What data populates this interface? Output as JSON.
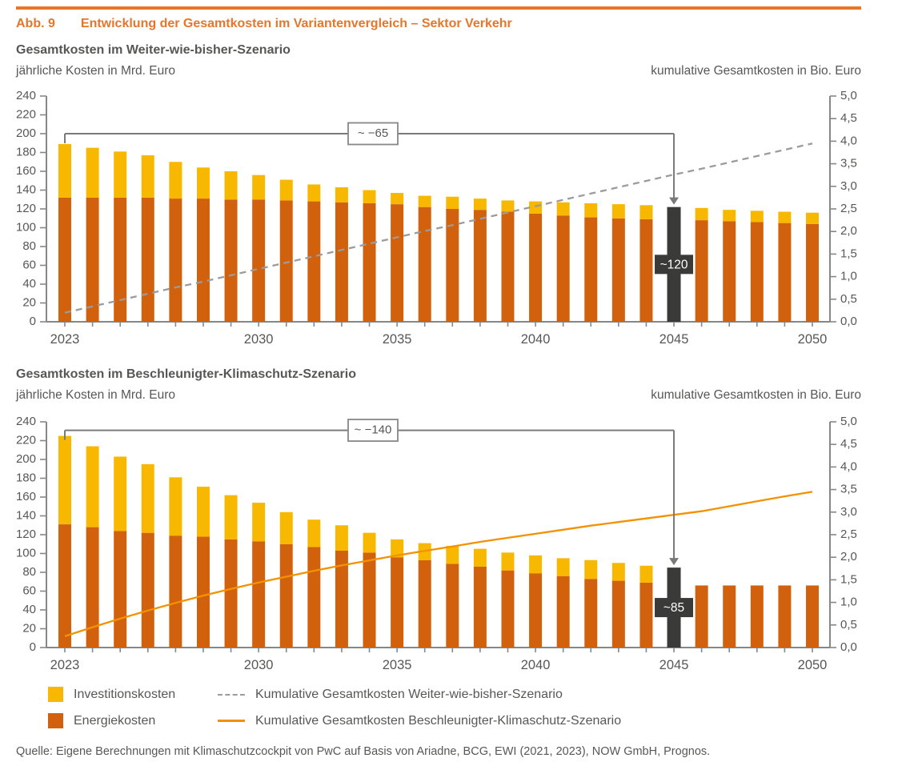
{
  "figure": {
    "label": "Abb. 9",
    "title": "Entwicklung der Gesamtkosten im Variantenvergleich – Sektor Verkehr",
    "source": "Quelle: Eigene Berechnungen mit Klimaschutzcockpit von PwC auf Basis von Ariadne, BCG, EWI (2021, 2023), NOW GmbH, Prognos."
  },
  "colors": {
    "accent_orange": "#e6762a",
    "bar_yellow": "#f9b800",
    "bar_orange": "#d2610e",
    "dark_bar": "#3a3a39",
    "line_gray": "#9b9b9b",
    "line_orange": "#f39200",
    "axis_gray": "#878787",
    "bracket_gray": "#7a7a79",
    "text_gray": "#575756",
    "badge_text": "#ffffff"
  },
  "legend": {
    "items": [
      {
        "key": "investitionskosten",
        "swatch": "square-yellow",
        "label": "Investitionskosten"
      },
      {
        "key": "kumulative-weiter-wie-bisher",
        "swatch": "dashed-line",
        "label": "Kumulative Gesamtkosten Weiter-wie-bisher-Szenario"
      },
      {
        "key": "energiekosten",
        "swatch": "square-orange",
        "label": "Energiekosten"
      },
      {
        "key": "kumulative-beschleunigter-klimaschutz",
        "swatch": "solid-line",
        "label": "Kumulative Gesamtkosten Beschleunigter-Klimaschutz-Szenario"
      }
    ]
  },
  "chart_data": [
    {
      "type": "bar",
      "title": "Gesamtkosten im Weiter-wie-bisher-Szenario",
      "ylabel_left": "jährliche Kosten in Mrd. Euro",
      "ylabel_right": "kumulative Gesamtkosten in Bio. Euro",
      "x": [
        2023,
        2024,
        2025,
        2026,
        2027,
        2028,
        2029,
        2030,
        2031,
        2032,
        2033,
        2034,
        2035,
        2036,
        2037,
        2038,
        2039,
        2040,
        2041,
        2042,
        2043,
        2044,
        2045,
        2046,
        2047,
        2048,
        2049,
        2050
      ],
      "x_tick_labels": [
        2023,
        2030,
        2035,
        2040,
        2045,
        2050
      ],
      "ylim_left": [
        0,
        240
      ],
      "ylim_right": [
        0,
        5
      ],
      "yticks_left": [
        "0",
        "20",
        "40",
        "60",
        "80",
        "100",
        "120",
        "140",
        "160",
        "180",
        "200",
        "220",
        "240"
      ],
      "yticks_right": [
        "0,0",
        "0,5",
        "1,0",
        "1,5",
        "2,0",
        "2,5",
        "3,0",
        "3,5",
        "4,0",
        "4,5",
        "5,0"
      ],
      "grid": false,
      "series": [
        {
          "name": "Energiekosten",
          "role": "bar",
          "axis": "left",
          "values": [
            132,
            132,
            132,
            132,
            131,
            131,
            130,
            130,
            129,
            128,
            127,
            126,
            125,
            122,
            120,
            119,
            117,
            115,
            113,
            111,
            110,
            109,
            null,
            108,
            107,
            106,
            105,
            104
          ]
        },
        {
          "name": "Investitionskosten",
          "role": "bar",
          "axis": "left",
          "values": [
            57,
            53,
            49,
            45,
            39,
            33,
            30,
            26,
            22,
            18,
            16,
            14,
            12,
            12,
            13,
            12,
            12,
            13,
            14,
            15,
            15,
            15,
            null,
            13,
            12,
            12,
            12,
            12
          ]
        },
        {
          "name": "Kumulative Gesamtkosten Weiter-wie-bisher-Szenario",
          "role": "line",
          "style": "dashed",
          "axis": "right",
          "values": [
            0.2,
            0.34,
            0.48,
            0.62,
            0.76,
            0.89,
            1.03,
            1.17,
            1.31,
            1.45,
            1.59,
            1.73,
            1.87,
            2.01,
            2.14,
            2.28,
            2.42,
            2.56,
            2.7,
            2.84,
            2.98,
            3.12,
            3.26,
            3.39,
            3.53,
            3.67,
            3.81,
            3.95
          ]
        }
      ],
      "highlight_bar": {
        "year": 2045,
        "total": 122,
        "label": "~120"
      },
      "bracket_annotation": {
        "label": "~ −65",
        "from_year": 2023,
        "to_year": 2045,
        "level": 200
      }
    },
    {
      "type": "bar",
      "title": "Gesamtkosten im Beschleunigter-Klimaschutz-Szenario",
      "ylabel_left": "jährliche Kosten in Mrd. Euro",
      "ylabel_right": "kumulative Gesamtkosten in Bio. Euro",
      "x": [
        2023,
        2024,
        2025,
        2026,
        2027,
        2028,
        2029,
        2030,
        2031,
        2032,
        2033,
        2034,
        2035,
        2036,
        2037,
        2038,
        2039,
        2040,
        2041,
        2042,
        2043,
        2044,
        2045,
        2046,
        2047,
        2048,
        2049,
        2050
      ],
      "x_tick_labels": [
        2023,
        2030,
        2035,
        2040,
        2045,
        2050
      ],
      "ylim_left": [
        0,
        240
      ],
      "ylim_right": [
        0,
        5
      ],
      "yticks_left": [
        "0",
        "20",
        "40",
        "60",
        "80",
        "100",
        "120",
        "140",
        "160",
        "180",
        "200",
        "220",
        "240"
      ],
      "yticks_right": [
        "0,0",
        "0,5",
        "1,0",
        "1,5",
        "2,0",
        "2,5",
        "3,0",
        "3,5",
        "4,0",
        "4,5",
        "5,0"
      ],
      "grid": false,
      "series": [
        {
          "name": "Energiekosten",
          "role": "bar",
          "axis": "left",
          "values": [
            131,
            128,
            124,
            122,
            119,
            118,
            115,
            113,
            110,
            107,
            103,
            101,
            96,
            93,
            89,
            86,
            82,
            79,
            76,
            73,
            71,
            69,
            null,
            66,
            66,
            66,
            66,
            66
          ]
        },
        {
          "name": "Investitionskosten",
          "role": "bar",
          "axis": "left",
          "values": [
            94,
            86,
            79,
            73,
            62,
            53,
            47,
            41,
            34,
            29,
            27,
            21,
            19,
            18,
            19,
            19,
            19,
            19,
            19,
            20,
            19,
            18,
            null,
            0,
            0,
            0,
            0,
            0
          ]
        },
        {
          "name": "Kumulative Gesamtkosten Beschleunigter-Klimaschutz-Szenario",
          "role": "line",
          "style": "solid",
          "axis": "right",
          "values": [
            0.25,
            0.45,
            0.64,
            0.82,
            0.99,
            1.15,
            1.3,
            1.44,
            1.57,
            1.7,
            1.82,
            1.93,
            2.04,
            2.14,
            2.24,
            2.34,
            2.43,
            2.52,
            2.61,
            2.7,
            2.78,
            2.86,
            2.94,
            3.02,
            3.13,
            3.24,
            3.35,
            3.45
          ]
        }
      ],
      "highlight_bar": {
        "year": 2045,
        "total": 85,
        "label": "~85"
      },
      "bracket_annotation": {
        "label": "~ −140",
        "from_year": 2023,
        "to_year": 2045,
        "level": 231
      }
    }
  ]
}
